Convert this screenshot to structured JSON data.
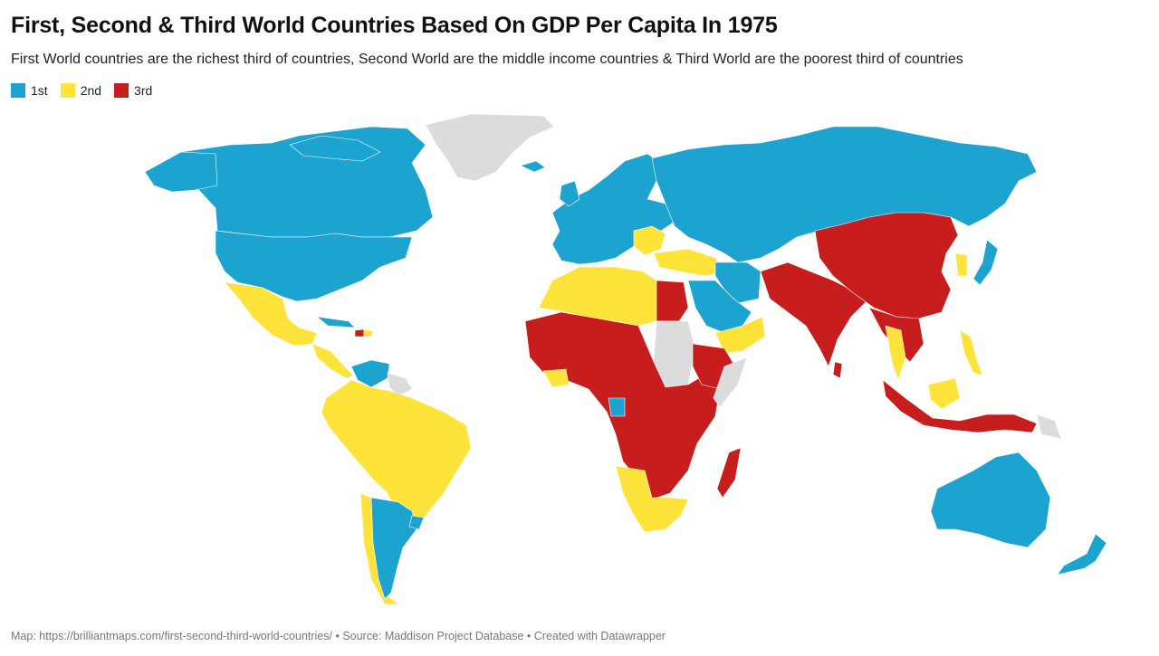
{
  "title": "First, Second & Third World Countries Based On GDP Per Capita In 1975",
  "subtitle": "First World countries are the richest third of countries, Second World are the middle income countries & Third World are the poorest third of countries",
  "legend": [
    {
      "label": "1st",
      "color": "#1ca3cf"
    },
    {
      "label": "2nd",
      "color": "#fde33a"
    },
    {
      "label": "3rd",
      "color": "#c71e1d"
    }
  ],
  "colors": {
    "first": "#1ca3cf",
    "second": "#fde33a",
    "third": "#c71e1d",
    "no_data": "#dcdcdc"
  },
  "footer": {
    "map_credit": "Map: https://brilliantmaps.com/first-second-third-world-countries/",
    "separator1": " • ",
    "source": "Source: Maddison Project Database",
    "separator2": " • ",
    "created_with": "Created with Datawrapper"
  }
}
